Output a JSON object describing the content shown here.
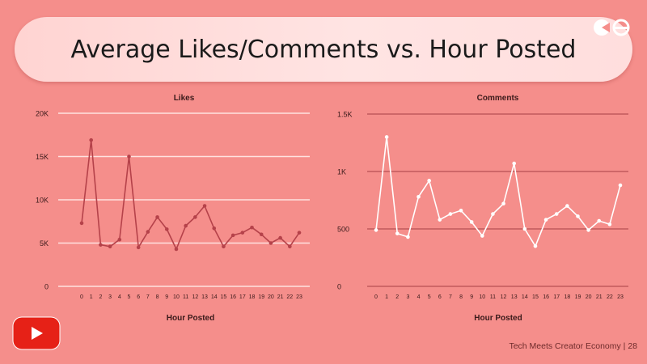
{
  "slide": {
    "title": "Average Likes/Comments vs. Hour Posted",
    "footer": "Tech Meets Creator Economy | 28"
  },
  "colors": {
    "background": "#f58e8b",
    "likes_line": "#b5424a",
    "comments_line": "#ffffff",
    "youtube_red": "#e62117"
  },
  "icons": {
    "brand": "brand-logo-icon",
    "video": "youtube-play-icon"
  },
  "chart_data": [
    {
      "type": "line",
      "title": "Likes",
      "xlabel": "Hour Posted",
      "ylabel": "",
      "x": [
        0,
        1,
        2,
        3,
        4,
        5,
        6,
        7,
        8,
        9,
        10,
        11,
        12,
        13,
        14,
        15,
        16,
        17,
        18,
        19,
        20,
        21,
        22,
        23
      ],
      "x_ticks": [
        "0",
        "1",
        "2",
        "3",
        "4",
        "5",
        "6",
        "7",
        "8",
        "9",
        "10",
        "11",
        "12",
        "13",
        "14",
        "15",
        "16",
        "17",
        "18",
        "19",
        "20",
        "21",
        "22",
        "23"
      ],
      "series": [
        {
          "values": [
            7300,
            16900,
            4800,
            4600,
            5400,
            15000,
            4500,
            6300,
            8000,
            6600,
            4300,
            7000,
            8000,
            9300,
            6700,
            4600,
            5900,
            6200,
            6800,
            6000,
            5000,
            5600,
            4600,
            6200
          ]
        }
      ],
      "ylim": [
        0,
        20000
      ],
      "y_ticks": [
        0,
        5000,
        10000,
        15000,
        20000
      ],
      "y_tick_labels": [
        "0",
        "5K",
        "10K",
        "15K",
        "20K"
      ],
      "grid": true,
      "legend": false
    },
    {
      "type": "line",
      "title": "Comments",
      "xlabel": "Hour Posted",
      "ylabel": "",
      "x": [
        0,
        1,
        2,
        3,
        4,
        5,
        6,
        7,
        8,
        9,
        10,
        11,
        12,
        13,
        14,
        15,
        16,
        17,
        18,
        19,
        20,
        21,
        22,
        23
      ],
      "x_ticks": [
        "0",
        "1",
        "2",
        "3",
        "4",
        "5",
        "6",
        "7",
        "8",
        "9",
        "10",
        "11",
        "12",
        "13",
        "14",
        "15",
        "16",
        "17",
        "18",
        "19",
        "20",
        "21",
        "22",
        "23"
      ],
      "series": [
        {
          "values": [
            490,
            1300,
            460,
            430,
            780,
            920,
            580,
            630,
            660,
            560,
            440,
            630,
            720,
            1070,
            500,
            350,
            580,
            630,
            700,
            610,
            490,
            570,
            540,
            880
          ]
        }
      ],
      "ylim": [
        0,
        1500
      ],
      "y_ticks": [
        0,
        500,
        1000,
        1500
      ],
      "y_tick_labels": [
        "0",
        "500",
        "1K",
        "1.5K"
      ],
      "grid": true,
      "legend": false
    }
  ]
}
